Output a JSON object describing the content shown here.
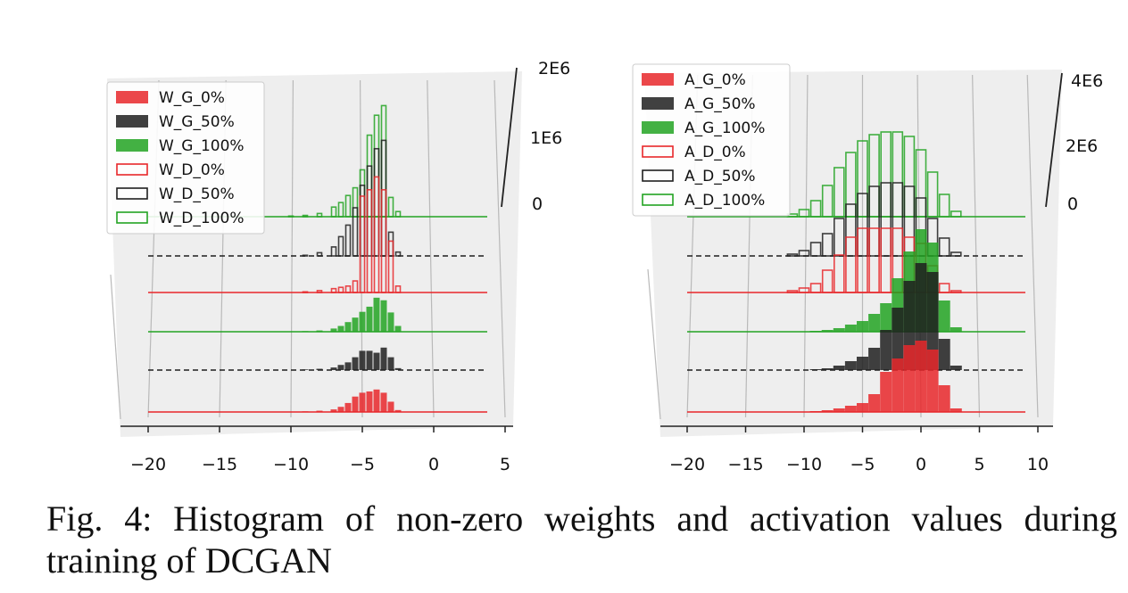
{
  "caption": "Fig. 4: Histogram of non-zero weights and activation values during training of DCGAN",
  "colors": {
    "red": "#e8272a",
    "black": "#1f1f1f",
    "green": "#22a322",
    "pane": "#eeeeee",
    "grid": "#b9b9b9"
  },
  "chart_data": [
    {
      "type": "bar",
      "layout": "3d-stacked-histograms",
      "x_ticks": [
        -20,
        -15,
        -10,
        -5,
        0,
        5
      ],
      "xlim": [
        -20,
        5
      ],
      "z_ticks": [
        "0",
        "1E6",
        "2E6"
      ],
      "zlim": [
        0,
        2000000
      ],
      "grid": true,
      "legend_position": "upper-left",
      "series": [
        {
          "name": "W_G_0%",
          "style": "filled",
          "color": "red",
          "bins": [
            [
              -9,
              0.01
            ],
            [
              -8,
              0.02
            ],
            [
              -7,
              0.04
            ],
            [
              -6.5,
              0.08
            ],
            [
              -6,
              0.14
            ],
            [
              -5.5,
              0.24
            ],
            [
              -5,
              0.3
            ],
            [
              -4.5,
              0.32
            ],
            [
              -4,
              0.35
            ],
            [
              -3.5,
              0.3
            ],
            [
              -3,
              0.16
            ],
            [
              -2.5,
              0.03
            ]
          ]
        },
        {
          "name": "W_G_50%",
          "style": "filled",
          "color": "black",
          "bins": [
            [
              -9,
              0.01
            ],
            [
              -8,
              0.02
            ],
            [
              -7,
              0.04
            ],
            [
              -6.5,
              0.08
            ],
            [
              -6,
              0.12
            ],
            [
              -5.5,
              0.2
            ],
            [
              -5,
              0.3
            ],
            [
              -4.5,
              0.3
            ],
            [
              -4,
              0.27
            ],
            [
              -3.5,
              0.35
            ],
            [
              -3,
              0.2
            ],
            [
              -2.5,
              0.03
            ]
          ]
        },
        {
          "name": "W_G_100%",
          "style": "filled",
          "color": "green",
          "bins": [
            [
              -9,
              0.01
            ],
            [
              -8,
              0.02
            ],
            [
              -7,
              0.05
            ],
            [
              -6.5,
              0.09
            ],
            [
              -6,
              0.15
            ],
            [
              -5.5,
              0.22
            ],
            [
              -5,
              0.31
            ],
            [
              -4.5,
              0.39
            ],
            [
              -4,
              0.53
            ],
            [
              -3.5,
              0.49
            ],
            [
              -3,
              0.3
            ],
            [
              -2.5,
              0.09
            ]
          ]
        },
        {
          "name": "W_D_0%",
          "style": "outline",
          "color": "red",
          "bins": [
            [
              -9,
              0.01
            ],
            [
              -8,
              0.03
            ],
            [
              -7,
              0.06
            ],
            [
              -6.5,
              0.08
            ],
            [
              -6,
              0.1
            ],
            [
              -5.5,
              0.18
            ],
            [
              -5,
              1.5
            ],
            [
              -4.5,
              1.6
            ],
            [
              -4,
              1.8
            ],
            [
              -3.5,
              1.6
            ],
            [
              -3,
              0.8
            ],
            [
              -2.5,
              0.1
            ]
          ]
        },
        {
          "name": "W_D_50%",
          "style": "outline",
          "color": "black",
          "bins": [
            [
              -9,
              0.01
            ],
            [
              -8,
              0.05
            ],
            [
              -7,
              0.14
            ],
            [
              -6.5,
              0.3
            ],
            [
              -6,
              0.48
            ],
            [
              -5.5,
              0.75
            ],
            [
              -5,
              1.1
            ],
            [
              -4.5,
              1.4
            ],
            [
              -4,
              1.67
            ],
            [
              -3.5,
              1.8
            ],
            [
              -3,
              0.37
            ],
            [
              -2.5,
              0.06
            ]
          ]
        },
        {
          "name": "W_D_100%",
          "style": "outline",
          "color": "green",
          "bins": [
            [
              -10,
              0.01
            ],
            [
              -9,
              0.02
            ],
            [
              -8,
              0.05
            ],
            [
              -7,
              0.15
            ],
            [
              -6.5,
              0.22
            ],
            [
              -6,
              0.33
            ],
            [
              -5.5,
              0.45
            ],
            [
              -5,
              0.73
            ],
            [
              -4.5,
              1.27
            ],
            [
              -4,
              1.58
            ],
            [
              -3.5,
              1.73
            ],
            [
              -3,
              0.3
            ],
            [
              -2.5,
              0.08
            ]
          ]
        }
      ]
    },
    {
      "type": "bar",
      "layout": "3d-stacked-histograms",
      "x_ticks": [
        -20,
        -15,
        -10,
        -5,
        0,
        5,
        10
      ],
      "xlim": [
        -20,
        10
      ],
      "z_ticks": [
        "0",
        "2E6",
        "4E6"
      ],
      "zlim": [
        0,
        4000000
      ],
      "grid": true,
      "legend_position": "upper-left",
      "series": [
        {
          "name": "A_G_0%",
          "style": "filled",
          "color": "red",
          "bins": [
            [
              -9,
              0.01
            ],
            [
              -8,
              0.02
            ],
            [
              -7,
              0.04
            ],
            [
              -6,
              0.07
            ],
            [
              -5,
              0.1
            ],
            [
              -4,
              0.2
            ],
            [
              -3,
              0.45
            ],
            [
              -2,
              0.6
            ],
            [
              -1,
              0.75
            ],
            [
              0,
              0.8
            ],
            [
              1,
              0.7
            ],
            [
              2,
              0.3
            ],
            [
              3,
              0.04
            ]
          ]
        },
        {
          "name": "A_G_50%",
          "style": "filled",
          "color": "black",
          "bins": [
            [
              -9,
              0.01
            ],
            [
              -8,
              0.02
            ],
            [
              -7,
              0.05
            ],
            [
              -6,
              0.1
            ],
            [
              -5,
              0.15
            ],
            [
              -4,
              0.25
            ],
            [
              -3,
              0.45
            ],
            [
              -2,
              0.7
            ],
            [
              -1,
              1.0
            ],
            [
              0,
              1.2
            ],
            [
              1,
              1.1
            ],
            [
              2,
              0.35
            ],
            [
              3,
              0.05
            ]
          ]
        },
        {
          "name": "A_G_100%",
          "style": "filled",
          "color": "green",
          "bins": [
            [
              -9,
              0.01
            ],
            [
              -8,
              0.02
            ],
            [
              -7,
              0.04
            ],
            [
              -6,
              0.08
            ],
            [
              -5,
              0.12
            ],
            [
              -4,
              0.2
            ],
            [
              -3,
              0.32
            ],
            [
              -2,
              0.6
            ],
            [
              -1,
              0.9
            ],
            [
              0,
              1.15
            ],
            [
              1,
              1.0
            ],
            [
              2,
              0.35
            ],
            [
              3,
              0.05
            ]
          ]
        },
        {
          "name": "A_D_0%",
          "style": "outline",
          "color": "red",
          "bins": [
            [
              -11,
              0.02
            ],
            [
              -10,
              0.05
            ],
            [
              -9,
              0.1
            ],
            [
              -8,
              0.25
            ],
            [
              -7,
              0.42
            ],
            [
              -6,
              0.62
            ],
            [
              -5,
              0.72
            ],
            [
              -4,
              0.72
            ],
            [
              -3,
              0.72
            ],
            [
              -2,
              0.72
            ],
            [
              -1,
              0.62
            ],
            [
              0,
              0.55
            ],
            [
              1,
              0.3
            ],
            [
              2,
              0.1
            ],
            [
              3,
              0.02
            ]
          ]
        },
        {
          "name": "A_D_50%",
          "style": "outline",
          "color": "black",
          "bins": [
            [
              -11,
              0.02
            ],
            [
              -10,
              0.06
            ],
            [
              -9,
              0.15
            ],
            [
              -8,
              0.25
            ],
            [
              -7,
              0.42
            ],
            [
              -6,
              0.58
            ],
            [
              -5,
              0.7
            ],
            [
              -4,
              0.78
            ],
            [
              -3,
              0.82
            ],
            [
              -2,
              0.82
            ],
            [
              -1,
              0.78
            ],
            [
              0,
              0.65
            ],
            [
              1,
              0.42
            ],
            [
              2,
              0.2
            ],
            [
              3,
              0.04
            ]
          ]
        },
        {
          "name": "A_D_100%",
          "style": "outline",
          "color": "green",
          "bins": [
            [
              -11,
              0.03
            ],
            [
              -10,
              0.08
            ],
            [
              -9,
              0.18
            ],
            [
              -8,
              0.35
            ],
            [
              -7,
              0.55
            ],
            [
              -6,
              0.72
            ],
            [
              -5,
              0.85
            ],
            [
              -4,
              0.92
            ],
            [
              -3,
              0.95
            ],
            [
              -2,
              0.95
            ],
            [
              -1,
              0.9
            ],
            [
              0,
              0.75
            ],
            [
              1,
              0.5
            ],
            [
              2,
              0.25
            ],
            [
              3,
              0.06
            ]
          ]
        }
      ]
    }
  ]
}
